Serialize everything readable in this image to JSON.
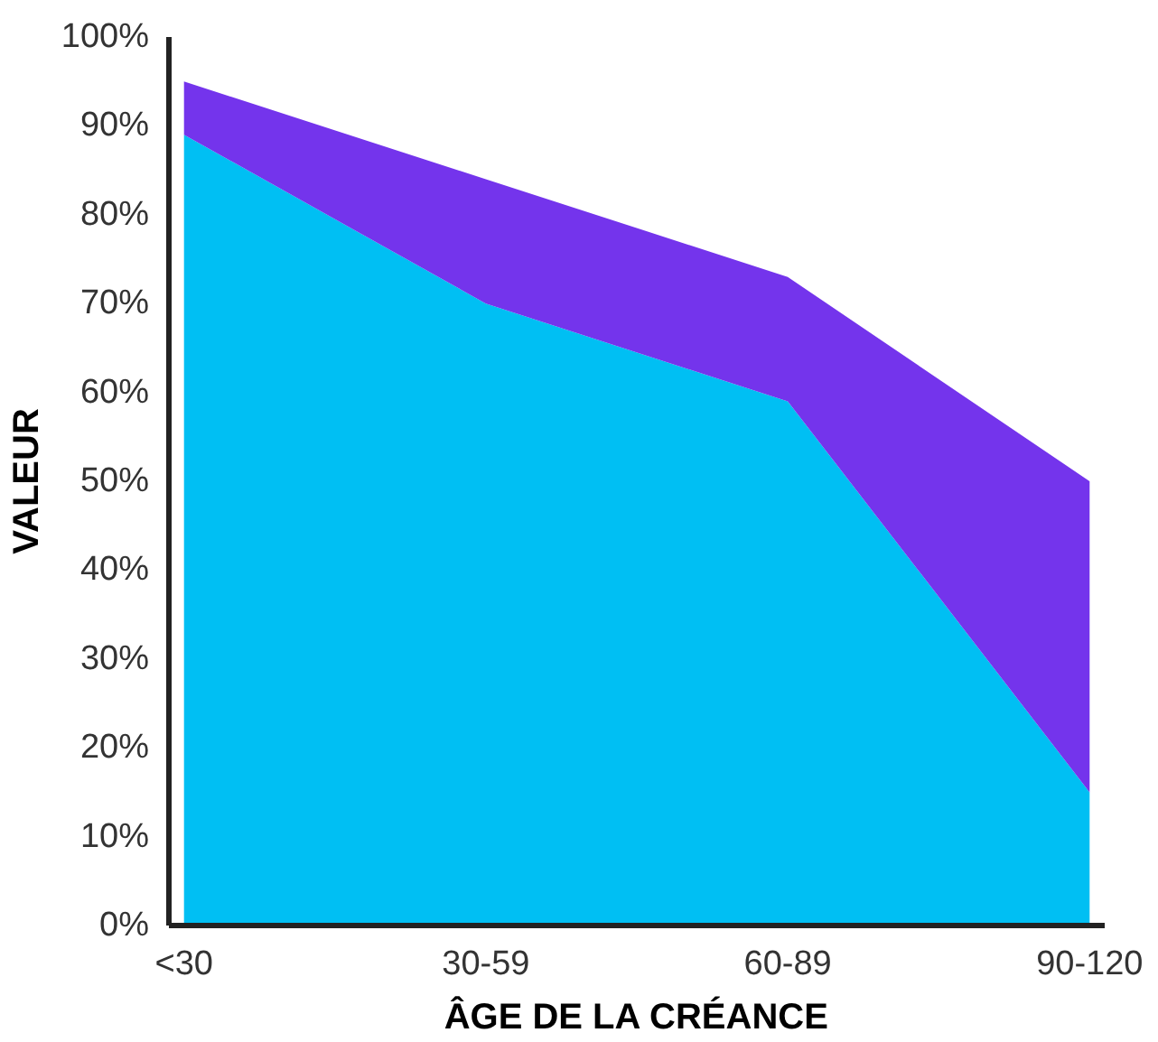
{
  "chart_data": {
    "type": "area",
    "stacked": true,
    "xlabel": "ÂGE DE LA CRÉANCE",
    "ylabel": "VALEUR",
    "categories": [
      "<30",
      "30-59",
      "60-89",
      "90-120"
    ],
    "series": [
      {
        "color": "#00bff3",
        "values": [
          89,
          70,
          59,
          15
        ]
      },
      {
        "color": "#7434ec",
        "values": [
          6,
          14,
          14,
          35
        ]
      }
    ],
    "ylim": [
      0,
      100
    ],
    "yticks": [
      {
        "value": 0,
        "label": "0%"
      },
      {
        "value": 10,
        "label": "10%"
      },
      {
        "value": 20,
        "label": "20%"
      },
      {
        "value": 30,
        "label": "30%"
      },
      {
        "value": 40,
        "label": "40%"
      },
      {
        "value": 50,
        "label": "50%"
      },
      {
        "value": 60,
        "label": "60%"
      },
      {
        "value": 70,
        "label": "70%"
      },
      {
        "value": 80,
        "label": "80%"
      },
      {
        "value": 90,
        "label": "90%"
      },
      {
        "value": 100,
        "label": "100%"
      }
    ],
    "grid": false
  }
}
